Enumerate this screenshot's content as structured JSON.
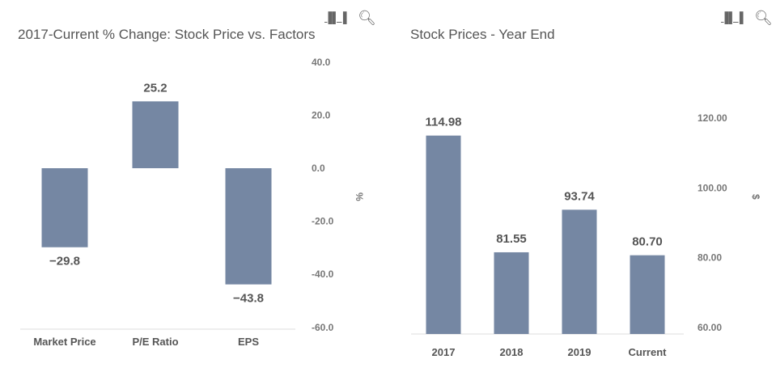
{
  "toolbar": {
    "icons": [
      "bar-chart-icon",
      "search-icon"
    ]
  },
  "colors": {
    "bar": "#7587a3",
    "axis": "#dddddd"
  },
  "chart_data": [
    {
      "type": "bar",
      "title": "2017-Current % Change: Stock Price vs. Factors",
      "ylabel": "%",
      "ylim": [
        -60,
        40
      ],
      "yticks": [
        "40.0",
        "20.0",
        "0.0",
        "-20.0",
        "-40.0",
        "-60.0"
      ],
      "categories": [
        "Market Price",
        "P/E Ratio",
        "EPS"
      ],
      "values": [
        -29.8,
        25.2,
        -43.8
      ],
      "data_labels": [
        "−29.8",
        "25.2",
        "−43.8"
      ],
      "grid": false
    },
    {
      "type": "bar",
      "title": "Stock Prices - Year End",
      "ylabel": "$",
      "ylim": [
        60,
        120
      ],
      "yticks": [
        "120.00",
        "100.00",
        "80.00",
        "60.00"
      ],
      "categories": [
        "2017",
        "2018",
        "2019",
        "Current"
      ],
      "values": [
        114.98,
        81.55,
        93.74,
        80.7
      ],
      "data_labels": [
        "114.98",
        "81.55",
        "93.74",
        "80.70"
      ],
      "grid": false
    }
  ]
}
